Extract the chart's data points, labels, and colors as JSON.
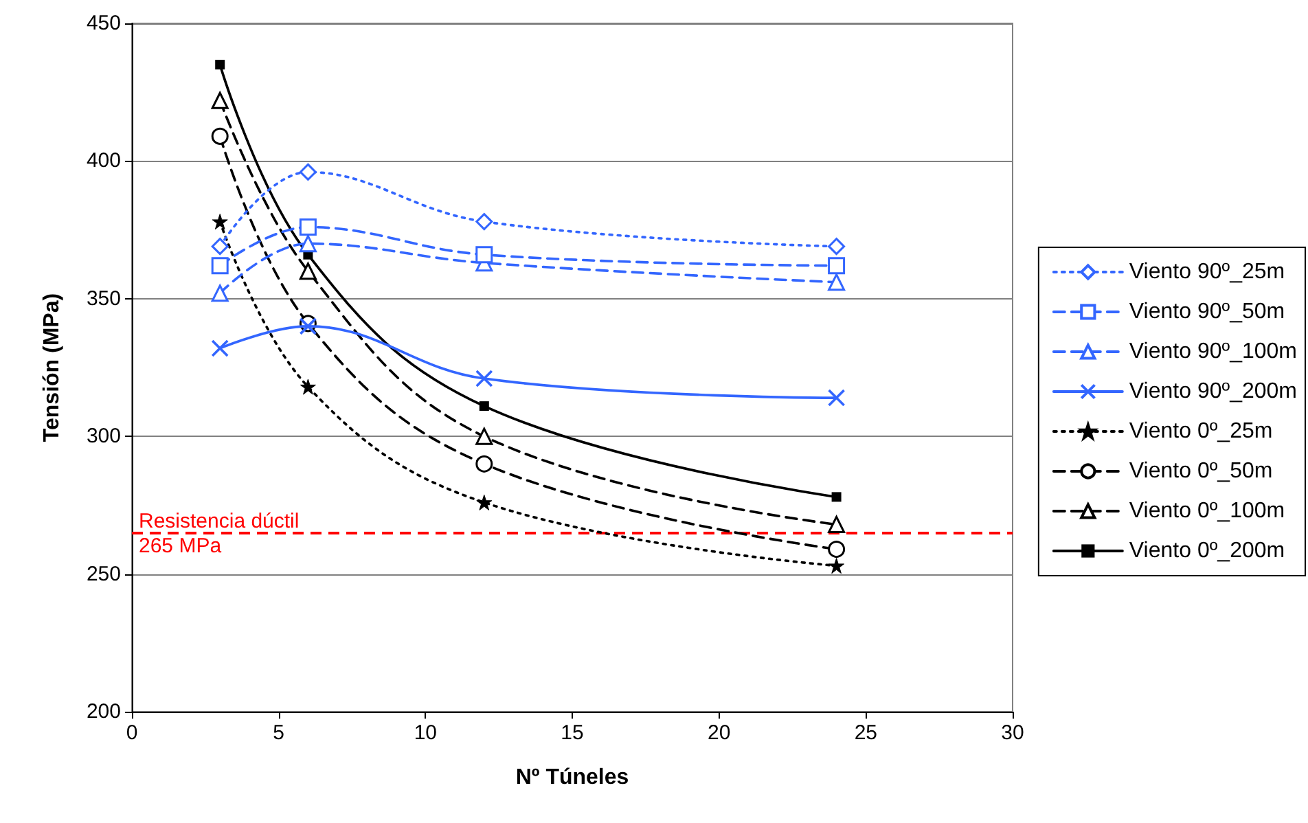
{
  "chart_data": {
    "type": "line",
    "xlabel": "Nº Túneles",
    "ylabel": "Tensión (MPa)",
    "x": [
      3,
      6,
      12,
      24
    ],
    "xlim": [
      0,
      30
    ],
    "xticks": [
      0,
      5,
      10,
      15,
      20,
      25,
      30
    ],
    "ylim": [
      200,
      450
    ],
    "yticks": [
      200,
      250,
      300,
      350,
      400,
      450
    ],
    "grid": "y",
    "legend": "right",
    "series": [
      {
        "name": "Viento 90º_25m",
        "color": "#3366ff",
        "marker": "diamond",
        "line_style": "dotted",
        "values": [
          369,
          396,
          378,
          369
        ]
      },
      {
        "name": "Viento 90º_50m",
        "color": "#3366ff",
        "marker": "square",
        "line_style": "dashed",
        "values": [
          362,
          376,
          366,
          362
        ]
      },
      {
        "name": "Viento 90º_100m",
        "color": "#3366ff",
        "marker": "triangle",
        "line_style": "dashed",
        "values": [
          352,
          370,
          363,
          356
        ]
      },
      {
        "name": "Viento 90º_200m",
        "color": "#3366ff",
        "marker": "cross",
        "line_style": "solid",
        "values": [
          332,
          340,
          321,
          314
        ]
      },
      {
        "name": "Viento 0º_25m",
        "color": "#000000",
        "marker": "star",
        "line_style": "dotted",
        "values": [
          378,
          318,
          276,
          253
        ]
      },
      {
        "name": "Viento 0º_50m",
        "color": "#000000",
        "marker": "circle",
        "line_style": "dashed",
        "values": [
          409,
          341,
          290,
          259
        ]
      },
      {
        "name": "Viento 0º_100m",
        "color": "#000000",
        "marker": "triangle",
        "line_style": "dashed",
        "values": [
          422,
          360,
          300,
          268
        ]
      },
      {
        "name": "Viento 0º_200m",
        "color": "#000000",
        "marker": "square",
        "line_style": "solid",
        "values": [
          435,
          366,
          311,
          278
        ]
      }
    ],
    "ref_lines": [
      {
        "axis": "y",
        "value": 265,
        "label": "Resistencia dúctil\n265 MPa",
        "color": "#ff0000",
        "line_style": "dashed"
      }
    ]
  }
}
